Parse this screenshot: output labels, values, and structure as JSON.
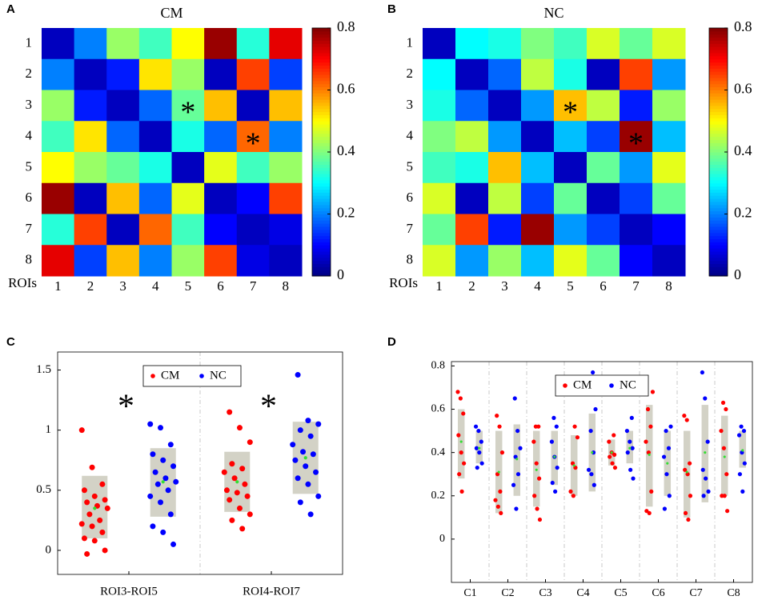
{
  "chart_data": [
    {
      "type": "heatmap",
      "panel": "A",
      "title": "CM",
      "xlabel": "ROIs",
      "categories": [
        1,
        2,
        3,
        4,
        5,
        6,
        7,
        8
      ],
      "colormap": "jet",
      "values": [
        [
          0.05,
          0.2,
          0.42,
          0.35,
          0.5,
          0.78,
          0.33,
          0.72
        ],
        [
          0.2,
          0.05,
          0.12,
          0.52,
          0.42,
          0.05,
          0.65,
          0.15
        ],
        [
          0.42,
          0.12,
          0.05,
          0.18,
          0.38,
          0.55,
          0.05,
          0.55
        ],
        [
          0.35,
          0.52,
          0.18,
          0.05,
          0.32,
          0.18,
          0.62,
          0.2
        ],
        [
          0.5,
          0.42,
          0.38,
          0.32,
          0.05,
          0.48,
          0.35,
          0.42
        ],
        [
          0.78,
          0.05,
          0.55,
          0.18,
          0.48,
          0.05,
          0.1,
          0.65
        ],
        [
          0.33,
          0.65,
          0.05,
          0.62,
          0.35,
          0.1,
          0.05,
          0.08
        ],
        [
          0.72,
          0.15,
          0.55,
          0.2,
          0.42,
          0.65,
          0.08,
          0.05
        ]
      ],
      "zlim": [
        0,
        0.8
      ],
      "zticks": [
        0,
        0.2,
        0.4,
        0.6,
        0.8
      ],
      "annotations": [
        {
          "text": "*",
          "x": 5,
          "y": 3
        },
        {
          "text": "*",
          "x": 7,
          "y": 4
        }
      ]
    },
    {
      "type": "heatmap",
      "panel": "B",
      "title": "NC",
      "xlabel": "ROIs",
      "categories": [
        1,
        2,
        3,
        4,
        5,
        6,
        7,
        8
      ],
      "colormap": "jet",
      "values": [
        [
          0.05,
          0.3,
          0.32,
          0.4,
          0.35,
          0.47,
          0.38,
          0.47
        ],
        [
          0.3,
          0.05,
          0.18,
          0.45,
          0.32,
          0.05,
          0.65,
          0.22
        ],
        [
          0.32,
          0.18,
          0.05,
          0.22,
          0.55,
          0.45,
          0.12,
          0.42
        ],
        [
          0.4,
          0.45,
          0.22,
          0.05,
          0.25,
          0.15,
          0.78,
          0.25
        ],
        [
          0.35,
          0.32,
          0.55,
          0.25,
          0.05,
          0.38,
          0.22,
          0.48
        ],
        [
          0.47,
          0.05,
          0.45,
          0.15,
          0.38,
          0.05,
          0.15,
          0.38
        ],
        [
          0.38,
          0.65,
          0.12,
          0.78,
          0.22,
          0.15,
          0.05,
          0.1
        ],
        [
          0.47,
          0.22,
          0.42,
          0.25,
          0.48,
          0.38,
          0.1,
          0.05
        ]
      ],
      "zlim": [
        0,
        0.8
      ],
      "zticks": [
        0,
        0.2,
        0.4,
        0.6,
        0.8
      ],
      "annotations": [
        {
          "text": "*",
          "x": 5,
          "y": 3
        },
        {
          "text": "*",
          "x": 7,
          "y": 4
        }
      ]
    },
    {
      "type": "dotbox",
      "panel": "C",
      "categories": [
        "ROI3-ROI5",
        "ROI4-ROI7"
      ],
      "legend": "top",
      "separators": "dashed",
      "box_color": "#d3d2c6",
      "mean_color": "#33dd33",
      "ylim": [
        -0.2,
        1.65
      ],
      "yticks": [
        0,
        0.5,
        1,
        1.5
      ],
      "series": [
        {
          "name": "CM",
          "color": "#ff0000",
          "values": [
            [
              1.0,
              0.69,
              0.55,
              0.5,
              0.45,
              0.42,
              0.4,
              0.37,
              0.35,
              0.3,
              0.25,
              0.22,
              0.2,
              0.15,
              0.1,
              0.08,
              0.0,
              -0.03
            ],
            [
              1.15,
              1.02,
              0.9,
              0.72,
              0.68,
              0.65,
              0.6,
              0.55,
              0.5,
              0.48,
              0.45,
              0.42,
              0.35,
              0.3,
              0.25,
              0.18
            ]
          ],
          "box_low": [
            0.1,
            0.32
          ],
          "box_high": [
            0.62,
            0.82
          ],
          "mean": [
            0.35,
            0.57
          ]
        },
        {
          "name": "NC",
          "color": "#0000ff",
          "values": [
            [
              1.05,
              1.02,
              0.88,
              0.8,
              0.75,
              0.7,
              0.65,
              0.6,
              0.57,
              0.55,
              0.5,
              0.45,
              0.4,
              0.3,
              0.2,
              0.15,
              0.05
            ],
            [
              1.46,
              1.08,
              1.05,
              1.0,
              0.95,
              0.88,
              0.82,
              0.8,
              0.75,
              0.7,
              0.65,
              0.6,
              0.55,
              0.45,
              0.4,
              0.3
            ]
          ],
          "box_low": [
            0.28,
            0.47
          ],
          "box_high": [
            0.85,
            1.07
          ],
          "mean": [
            0.57,
            0.77
          ]
        }
      ],
      "annotations": [
        {
          "text": "*",
          "category": "ROI3-ROI5"
        },
        {
          "text": "*",
          "category": "ROI4-ROI7"
        }
      ]
    },
    {
      "type": "dotbox",
      "panel": "D",
      "categories": [
        "C1",
        "C2",
        "C3",
        "C4",
        "C5",
        "C6",
        "C7",
        "C8"
      ],
      "legend": "top",
      "separators": "dashed",
      "box_color": "#d3d2c6",
      "mean_color": "#33dd33",
      "ylim": [
        -0.2,
        0.82
      ],
      "yticks": [
        0,
        0.2,
        0.4,
        0.6,
        0.8
      ],
      "series": [
        {
          "name": "CM",
          "color": "#ff0000",
          "values": [
            [
              0.68,
              0.65,
              0.58,
              0.48,
              0.4,
              0.35,
              0.3,
              0.22
            ],
            [
              0.57,
              0.52,
              0.4,
              0.3,
              0.22,
              0.18,
              0.15,
              0.12
            ],
            [
              0.52,
              0.52,
              0.45,
              0.35,
              0.28,
              0.2,
              0.14,
              0.09
            ],
            [
              0.52,
              0.47,
              0.35,
              0.33,
              0.22,
              0.2
            ],
            [
              0.48,
              0.45,
              0.4,
              0.39,
              0.38,
              0.35,
              0.33
            ],
            [
              0.68,
              0.6,
              0.52,
              0.45,
              0.4,
              0.22,
              0.13,
              0.12
            ],
            [
              0.57,
              0.55,
              0.35,
              0.32,
              0.3,
              0.2,
              0.12,
              0.09
            ],
            [
              0.63,
              0.6,
              0.5,
              0.42,
              0.3,
              0.2,
              0.2,
              0.13
            ]
          ],
          "box_low": [
            0.28,
            0.12,
            0.15,
            0.2,
            0.34,
            0.15,
            0.1,
            0.2
          ],
          "box_high": [
            0.6,
            0.5,
            0.5,
            0.48,
            0.46,
            0.62,
            0.5,
            0.57
          ],
          "mean": [
            0.45,
            0.31,
            0.32,
            0.34,
            0.4,
            0.39,
            0.31,
            0.38
          ]
        },
        {
          "name": "NC",
          "color": "#0000ff",
          "values": [
            [
              0.52,
              0.5,
              0.45,
              0.42,
              0.4,
              0.35,
              0.33
            ],
            [
              0.65,
              0.5,
              0.42,
              0.38,
              0.3,
              0.25,
              0.14
            ],
            [
              0.56,
              0.52,
              0.45,
              0.38,
              0.33,
              0.26,
              0.22
            ],
            [
              0.77,
              0.6,
              0.5,
              0.4,
              0.32,
              0.3,
              0.25
            ],
            [
              0.56,
              0.5,
              0.45,
              0.42,
              0.4,
              0.32,
              0.28
            ],
            [
              0.52,
              0.5,
              0.42,
              0.38,
              0.3,
              0.2,
              0.14
            ],
            [
              0.77,
              0.65,
              0.45,
              0.32,
              0.28,
              0.22,
              0.2
            ],
            [
              0.52,
              0.5,
              0.48,
              0.4,
              0.35,
              0.3,
              0.22
            ]
          ],
          "box_low": [
            0.35,
            0.2,
            0.25,
            0.22,
            0.35,
            0.2,
            0.17,
            0.33
          ],
          "box_high": [
            0.5,
            0.53,
            0.5,
            0.58,
            0.5,
            0.5,
            0.62,
            0.5
          ],
          "mean": [
            0.42,
            0.37,
            0.38,
            0.4,
            0.42,
            0.35,
            0.4,
            0.41
          ]
        }
      ]
    }
  ]
}
